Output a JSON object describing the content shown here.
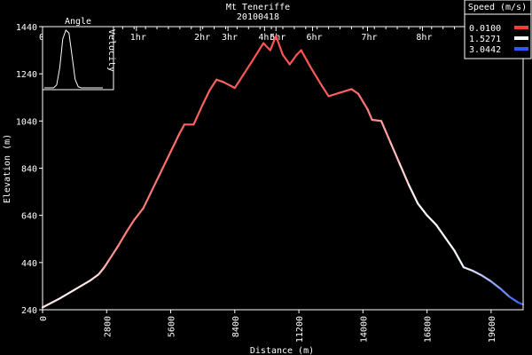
{
  "chart_data": {
    "type": "line",
    "title": "Mt Teneriffe",
    "subtitle": "20100418",
    "xlabel": "Distance (m)",
    "ylabel": "Elevation (m)",
    "xlim": [
      0,
      21000
    ],
    "ylim": [
      240,
      1440
    ],
    "x_ticks": [
      0,
      2800,
      5600,
      8400,
      11200,
      14000,
      16800,
      19600
    ],
    "y_ticks": [
      240,
      440,
      640,
      840,
      1040,
      1240,
      1440
    ],
    "time_axis": {
      "ticks": [
        {
          "label": "0h",
          "distance": 0
        },
        {
          "label": "1hr",
          "distance": 4100
        },
        {
          "label": "2hr",
          "distance": 6900
        },
        {
          "label": "3hr",
          "distance": 8100
        },
        {
          "label": "4hr",
          "distance": 9700
        },
        {
          "label": "5hr",
          "distance": 10200
        },
        {
          "label": "6hr",
          "distance": 11800
        },
        {
          "label": "7hr",
          "distance": 14200
        },
        {
          "label": "8hr",
          "distance": 16600
        }
      ]
    },
    "legend": {
      "title": "Speed (m/s)",
      "position": "top-right",
      "entries": [
        {
          "label": "0.0100",
          "color": "#ff3b3b"
        },
        {
          "label": "1.5271",
          "color": "#ffffff"
        },
        {
          "label": "3.0442",
          "color": "#3355ff"
        }
      ]
    },
    "inset": {
      "title": "Angle",
      "ylabel": "Velocity",
      "position": "top-left",
      "values": [
        0,
        0,
        0,
        0,
        0.05,
        0.35,
        0.85,
        1.0,
        0.95,
        0.55,
        0.15,
        0.02,
        0,
        0,
        0,
        0,
        0,
        0,
        0,
        0
      ]
    },
    "series": [
      {
        "points": [
          [
            0,
            250,
            1.2
          ],
          [
            700,
            285,
            1.4
          ],
          [
            1400,
            325,
            1.4
          ],
          [
            2100,
            365,
            1.3
          ],
          [
            2450,
            390,
            1.2
          ],
          [
            2700,
            420,
            1.0
          ],
          [
            2900,
            450,
            0.8
          ],
          [
            3300,
            510,
            0.6
          ],
          [
            3700,
            575,
            0.5
          ],
          [
            4000,
            620,
            0.5
          ],
          [
            4400,
            670,
            0.5
          ],
          [
            4800,
            750,
            0.5
          ],
          [
            5200,
            830,
            0.4
          ],
          [
            5600,
            910,
            0.4
          ],
          [
            6000,
            990,
            0.4
          ],
          [
            6200,
            1025,
            0.3
          ],
          [
            6600,
            1025,
            0.3
          ],
          [
            7000,
            1110,
            0.3
          ],
          [
            7300,
            1170,
            0.3
          ],
          [
            7600,
            1215,
            0.3
          ],
          [
            7900,
            1205,
            0.3
          ],
          [
            8200,
            1190,
            0.3
          ],
          [
            8400,
            1180,
            0.3
          ],
          [
            8800,
            1240,
            0.2
          ],
          [
            9200,
            1300,
            0.2
          ],
          [
            9650,
            1370,
            0.2
          ],
          [
            9950,
            1340,
            0.2
          ],
          [
            10200,
            1400,
            0.2
          ],
          [
            10500,
            1320,
            0.2
          ],
          [
            10800,
            1280,
            0.2
          ],
          [
            11100,
            1320,
            0.2
          ],
          [
            11300,
            1340,
            0.2
          ],
          [
            11700,
            1270,
            0.2
          ],
          [
            12200,
            1190,
            0.3
          ],
          [
            12500,
            1145,
            0.3
          ],
          [
            13000,
            1160,
            0.3
          ],
          [
            13500,
            1175,
            0.3
          ],
          [
            13800,
            1155,
            0.4
          ],
          [
            14200,
            1090,
            0.5
          ],
          [
            14400,
            1045,
            0.6
          ],
          [
            14800,
            1040,
            0.7
          ],
          [
            15200,
            950,
            0.9
          ],
          [
            15600,
            860,
            1.1
          ],
          [
            16000,
            770,
            1.3
          ],
          [
            16400,
            690,
            1.5
          ],
          [
            16800,
            640,
            1.6
          ],
          [
            17200,
            600,
            1.5
          ],
          [
            17600,
            545,
            1.5
          ],
          [
            18000,
            490,
            1.6
          ],
          [
            18400,
            420,
            1.6
          ],
          [
            18800,
            405,
            1.8
          ],
          [
            19200,
            385,
            2.0
          ],
          [
            19600,
            360,
            2.2
          ],
          [
            20000,
            330,
            2.5
          ],
          [
            20400,
            295,
            2.7
          ],
          [
            20800,
            270,
            2.9
          ],
          [
            21000,
            262,
            3.0
          ]
        ]
      }
    ]
  }
}
